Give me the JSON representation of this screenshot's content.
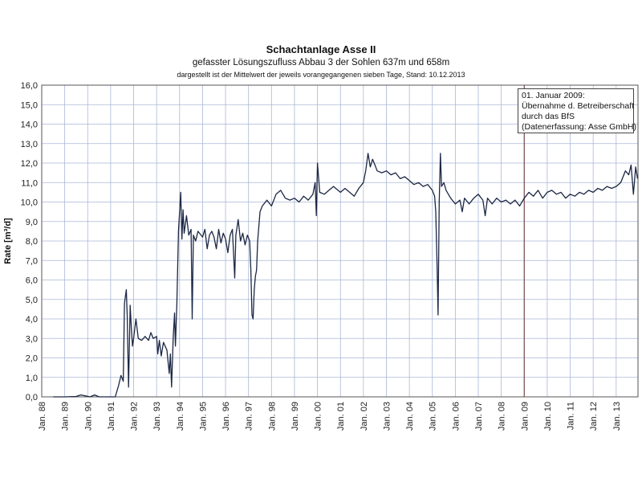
{
  "chart_data": {
    "type": "line",
    "title": "Schachtanlage Asse II",
    "subtitle": "gefasster Lösungszufluss Abbau 3 der Sohlen 637m und 658m",
    "note": "dargestellt ist der Mittelwert der jeweils vorangegangenen sieben Tage, Stand: 10.12.2013",
    "ylabel": "Rate [m³/d]",
    "xlabel": "",
    "ylim": [
      0,
      16
    ],
    "y_ticks": [
      "0,0",
      "1,0",
      "2,0",
      "3,0",
      "4,0",
      "5,0",
      "6,0",
      "7,0",
      "8,0",
      "9,0",
      "10,0",
      "11,0",
      "12,0",
      "13,0",
      "14,0",
      "15,0",
      "16,0"
    ],
    "x_ticks": [
      "Jan. 88",
      "Jan. 89",
      "Jan. 90",
      "Jan. 91",
      "Jan. 92",
      "Jan. 93",
      "Jan. 94",
      "Jan. 95",
      "Jan. 96",
      "Jan. 97",
      "Jan. 98",
      "Jan. 99",
      "Jan. 00",
      "Jan. 01",
      "Jan. 02",
      "Jan. 03",
      "Jan. 04",
      "Jan. 05",
      "Jan. 06",
      "Jan. 07",
      "Jan. 08",
      "Jan. 09",
      "Jan. 10",
      "Jan. 11",
      "Jan. 12",
      "Jan. 13"
    ],
    "grid": true,
    "line_color": "#1c2744",
    "marker_line": {
      "x": 2009.0
    },
    "annotation": [
      "01. Januar 2009:",
      "Übernahme d. Betreiberschaft",
      "durch das BfS",
      "(Datenerfassung: Asse GmbH)"
    ],
    "series": [
      {
        "points": [
          [
            1988.5,
            0.0
          ],
          [
            1989.0,
            0.0
          ],
          [
            1989.5,
            0.02
          ],
          [
            1989.7,
            0.1
          ],
          [
            1989.9,
            0.05
          ],
          [
            1990.1,
            0.0
          ],
          [
            1990.3,
            0.1
          ],
          [
            1990.5,
            0.0
          ],
          [
            1990.9,
            0.0
          ],
          [
            1991.2,
            0.0
          ],
          [
            1991.35,
            0.6
          ],
          [
            1991.45,
            1.1
          ],
          [
            1991.55,
            0.8
          ],
          [
            1991.6,
            4.8
          ],
          [
            1991.68,
            5.5
          ],
          [
            1991.72,
            4.2
          ],
          [
            1991.78,
            0.5
          ],
          [
            1991.85,
            4.7
          ],
          [
            1991.9,
            3.5
          ],
          [
            1991.95,
            2.6
          ],
          [
            1992.0,
            3.0
          ],
          [
            1992.1,
            4.0
          ],
          [
            1992.2,
            3.0
          ],
          [
            1992.35,
            2.9
          ],
          [
            1992.5,
            3.1
          ],
          [
            1992.65,
            2.9
          ],
          [
            1992.75,
            3.3
          ],
          [
            1992.85,
            3.0
          ],
          [
            1993.0,
            3.1
          ],
          [
            1993.05,
            2.2
          ],
          [
            1993.12,
            2.9
          ],
          [
            1993.2,
            2.1
          ],
          [
            1993.3,
            2.8
          ],
          [
            1993.45,
            2.4
          ],
          [
            1993.55,
            1.2
          ],
          [
            1993.6,
            2.2
          ],
          [
            1993.65,
            0.5
          ],
          [
            1993.72,
            3.0
          ],
          [
            1993.78,
            4.3
          ],
          [
            1993.82,
            2.6
          ],
          [
            1993.88,
            4.8
          ],
          [
            1993.95,
            8.5
          ],
          [
            1994.0,
            9.5
          ],
          [
            1994.05,
            10.5
          ],
          [
            1994.1,
            8.1
          ],
          [
            1994.15,
            9.6
          ],
          [
            1994.2,
            8.4
          ],
          [
            1994.3,
            9.3
          ],
          [
            1994.4,
            8.3
          ],
          [
            1994.5,
            8.6
          ],
          [
            1994.55,
            4.0
          ],
          [
            1994.6,
            8.3
          ],
          [
            1994.7,
            8.0
          ],
          [
            1994.8,
            8.5
          ],
          [
            1995.0,
            8.2
          ],
          [
            1995.1,
            8.6
          ],
          [
            1995.2,
            7.6
          ],
          [
            1995.3,
            8.3
          ],
          [
            1995.4,
            8.5
          ],
          [
            1995.5,
            8.2
          ],
          [
            1995.6,
            7.6
          ],
          [
            1995.7,
            8.6
          ],
          [
            1995.8,
            7.9
          ],
          [
            1995.9,
            8.4
          ],
          [
            1996.0,
            8.1
          ],
          [
            1996.1,
            7.4
          ],
          [
            1996.2,
            8.3
          ],
          [
            1996.3,
            8.6
          ],
          [
            1996.4,
            6.1
          ],
          [
            1996.45,
            8.3
          ],
          [
            1996.55,
            9.1
          ],
          [
            1996.65,
            8.0
          ],
          [
            1996.75,
            8.4
          ],
          [
            1996.85,
            7.8
          ],
          [
            1996.95,
            8.3
          ],
          [
            1997.05,
            8.0
          ],
          [
            1997.1,
            6.5
          ],
          [
            1997.15,
            4.2
          ],
          [
            1997.2,
            4.0
          ],
          [
            1997.25,
            5.5
          ],
          [
            1997.3,
            6.2
          ],
          [
            1997.35,
            6.5
          ],
          [
            1997.4,
            8.0
          ],
          [
            1997.5,
            9.5
          ],
          [
            1997.6,
            9.8
          ],
          [
            1997.8,
            10.1
          ],
          [
            1998.0,
            9.8
          ],
          [
            1998.2,
            10.4
          ],
          [
            1998.4,
            10.6
          ],
          [
            1998.6,
            10.2
          ],
          [
            1998.8,
            10.1
          ],
          [
            1999.0,
            10.2
          ],
          [
            1999.2,
            10.0
          ],
          [
            1999.4,
            10.3
          ],
          [
            1999.6,
            10.1
          ],
          [
            1999.8,
            10.4
          ],
          [
            1999.9,
            11.0
          ],
          [
            1999.95,
            9.3
          ],
          [
            2000.0,
            12.0
          ],
          [
            2000.1,
            10.5
          ],
          [
            2000.3,
            10.4
          ],
          [
            2000.5,
            10.6
          ],
          [
            2000.7,
            10.8
          ],
          [
            2001.0,
            10.5
          ],
          [
            2001.2,
            10.7
          ],
          [
            2001.4,
            10.5
          ],
          [
            2001.6,
            10.3
          ],
          [
            2001.8,
            10.7
          ],
          [
            2002.0,
            11.0
          ],
          [
            2002.1,
            11.6
          ],
          [
            2002.2,
            12.5
          ],
          [
            2002.3,
            11.8
          ],
          [
            2002.4,
            12.2
          ],
          [
            2002.5,
            11.9
          ],
          [
            2002.6,
            11.6
          ],
          [
            2002.8,
            11.5
          ],
          [
            2003.0,
            11.6
          ],
          [
            2003.2,
            11.4
          ],
          [
            2003.4,
            11.5
          ],
          [
            2003.6,
            11.2
          ],
          [
            2003.8,
            11.3
          ],
          [
            2004.0,
            11.1
          ],
          [
            2004.2,
            10.9
          ],
          [
            2004.4,
            11.0
          ],
          [
            2004.6,
            10.8
          ],
          [
            2004.8,
            10.9
          ],
          [
            2005.0,
            10.6
          ],
          [
            2005.1,
            10.3
          ],
          [
            2005.15,
            9.5
          ],
          [
            2005.2,
            7.0
          ],
          [
            2005.25,
            4.2
          ],
          [
            2005.3,
            10.0
          ],
          [
            2005.35,
            12.5
          ],
          [
            2005.4,
            10.8
          ],
          [
            2005.5,
            11.0
          ],
          [
            2005.6,
            10.6
          ],
          [
            2005.8,
            10.2
          ],
          [
            2006.0,
            9.9
          ],
          [
            2006.2,
            10.1
          ],
          [
            2006.3,
            9.5
          ],
          [
            2006.4,
            10.2
          ],
          [
            2006.6,
            9.9
          ],
          [
            2006.8,
            10.2
          ],
          [
            2007.0,
            10.4
          ],
          [
            2007.2,
            10.1
          ],
          [
            2007.3,
            9.3
          ],
          [
            2007.4,
            10.2
          ],
          [
            2007.6,
            9.9
          ],
          [
            2007.8,
            10.2
          ],
          [
            2008.0,
            10.0
          ],
          [
            2008.2,
            10.1
          ],
          [
            2008.4,
            9.9
          ],
          [
            2008.6,
            10.1
          ],
          [
            2008.8,
            9.8
          ],
          [
            2009.0,
            10.2
          ],
          [
            2009.2,
            10.5
          ],
          [
            2009.4,
            10.3
          ],
          [
            2009.6,
            10.6
          ],
          [
            2009.8,
            10.2
          ],
          [
            2010.0,
            10.5
          ],
          [
            2010.2,
            10.6
          ],
          [
            2010.4,
            10.4
          ],
          [
            2010.6,
            10.5
          ],
          [
            2010.8,
            10.2
          ],
          [
            2011.0,
            10.4
          ],
          [
            2011.2,
            10.3
          ],
          [
            2011.4,
            10.5
          ],
          [
            2011.6,
            10.4
          ],
          [
            2011.8,
            10.6
          ],
          [
            2012.0,
            10.5
          ],
          [
            2012.2,
            10.7
          ],
          [
            2012.4,
            10.6
          ],
          [
            2012.6,
            10.8
          ],
          [
            2012.8,
            10.7
          ],
          [
            2013.0,
            10.8
          ],
          [
            2013.2,
            11.0
          ],
          [
            2013.4,
            11.6
          ],
          [
            2013.55,
            11.4
          ],
          [
            2013.65,
            11.9
          ],
          [
            2013.75,
            10.4
          ],
          [
            2013.85,
            11.8
          ],
          [
            2013.93,
            11.2
          ]
        ]
      }
    ]
  }
}
